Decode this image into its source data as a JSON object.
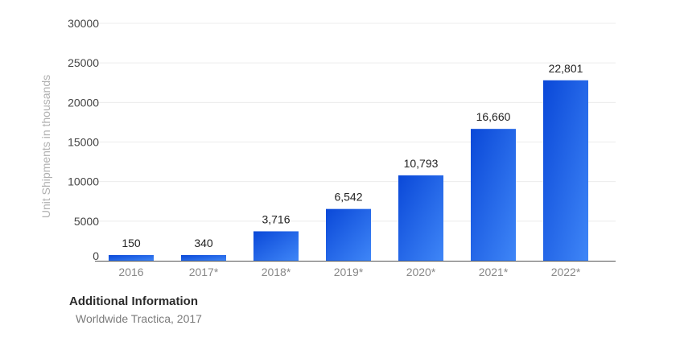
{
  "chart_data": {
    "type": "bar",
    "categories": [
      "2016",
      "2017*",
      "2018*",
      "2019*",
      "2020*",
      "2021*",
      "2022*"
    ],
    "values": [
      150,
      340,
      3716,
      6542,
      10793,
      16660,
      22801
    ],
    "value_labels": [
      "150",
      "340",
      "3,716",
      "6,542",
      "10,793",
      "16,660",
      "22,801"
    ],
    "ylabel": "Unit Shipments in thousands",
    "xlabel": "",
    "yticks": [
      "0",
      "5000",
      "10000",
      "15000",
      "20000",
      "25000",
      "30000"
    ],
    "ylim": [
      0,
      30000
    ],
    "grid": true,
    "colors": {
      "bar_top": "#0a48d8",
      "bar_bottom": "#3f86f7"
    }
  },
  "footer": {
    "title": "Additional Information",
    "source": "Worldwide Tractica, 2017"
  }
}
